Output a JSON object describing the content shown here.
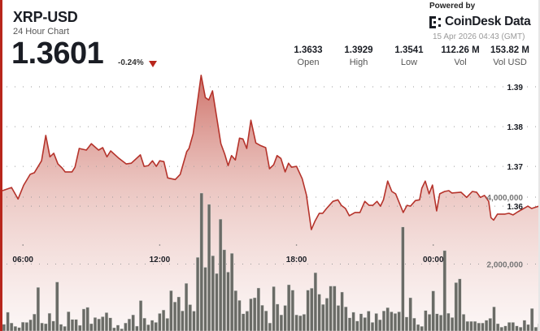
{
  "header": {
    "title": "XRP-USD",
    "subtitle": "24 Hour Chart",
    "price": "1.3601",
    "change": "-0.24%",
    "change_direction": "down",
    "down_color": "#b8261c"
  },
  "stats": [
    {
      "value": "1.3633",
      "label": "Open"
    },
    {
      "value": "1.3929",
      "label": "High"
    },
    {
      "value": "1.3541",
      "label": "Low"
    },
    {
      "value": "112.26 M",
      "label": "Vol"
    },
    {
      "value": "153.82 M",
      "label": "Vol USD"
    }
  ],
  "branding": {
    "powered_by": "Powered by",
    "name": "CoinDesk Data",
    "timestamp": "15 Apr 2026 04:43 (GMT)"
  },
  "chart_data": {
    "type": "line",
    "title": "",
    "xlabel": "",
    "ylabel": "",
    "xlim": [
      "05:06",
      "04:41"
    ],
    "ylim": [
      1.3286,
      1.3945
    ],
    "grid": true,
    "legend": "none",
    "line_color": "#b5332b",
    "bar_color": "#6a6b66",
    "x_ticks": [
      "06:00",
      "12:00",
      "18:00",
      "00:00"
    ],
    "price_ticks": [
      {
        "value": 1.39,
        "label": "1.39"
      },
      {
        "value": 1.38,
        "label": "1.38"
      },
      {
        "value": 1.37,
        "label": "1.37"
      },
      {
        "value": 1.36,
        "label": "1.36"
      }
    ],
    "volume_ticks": [
      {
        "value": 4000000,
        "label": "4,000,000"
      },
      {
        "value": 2000000,
        "label": "2,000,000"
      }
    ],
    "volume_ylim": [
      0,
      7830000
    ],
    "price_series": [
      [
        "05:06",
        1.3639
      ],
      [
        "05:30",
        1.3647
      ],
      [
        "05:47",
        1.3618
      ],
      [
        "06:02",
        1.3653
      ],
      [
        "06:19",
        1.368
      ],
      [
        "06:30",
        1.3684
      ],
      [
        "06:49",
        1.3714
      ],
      [
        "07:00",
        1.3778
      ],
      [
        "07:11",
        1.3724
      ],
      [
        "07:21",
        1.3733
      ],
      [
        "07:32",
        1.3706
      ],
      [
        "07:43",
        1.3696
      ],
      [
        "07:51",
        1.3686
      ],
      [
        "08:09",
        1.3686
      ],
      [
        "08:17",
        1.3698
      ],
      [
        "08:28",
        1.3745
      ],
      [
        "08:47",
        1.3741
      ],
      [
        "09:00",
        1.3757
      ],
      [
        "09:19",
        1.3741
      ],
      [
        "09:30",
        1.3747
      ],
      [
        "09:41",
        1.3724
      ],
      [
        "09:51",
        1.3739
      ],
      [
        "10:13",
        1.372
      ],
      [
        "10:32",
        1.3706
      ],
      [
        "10:45",
        1.3708
      ],
      [
        "11:09",
        1.3729
      ],
      [
        "11:19",
        1.37
      ],
      [
        "11:30",
        1.3702
      ],
      [
        "11:41",
        1.3714
      ],
      [
        "11:51",
        1.37
      ],
      [
        "12:00",
        1.3714
      ],
      [
        "12:11",
        1.3712
      ],
      [
        "12:21",
        1.3671
      ],
      [
        "12:41",
        1.3667
      ],
      [
        "12:54",
        1.368
      ],
      [
        "13:11",
        1.3737
      ],
      [
        "13:17",
        1.3745
      ],
      [
        "13:28",
        1.3782
      ],
      [
        "13:49",
        1.3929
      ],
      [
        "14:00",
        1.3873
      ],
      [
        "14:09",
        1.3867
      ],
      [
        "14:19",
        1.389
      ],
      [
        "14:41",
        1.3757
      ],
      [
        "14:51",
        1.3731
      ],
      [
        "15:00",
        1.3702
      ],
      [
        "15:09",
        1.3727
      ],
      [
        "15:19",
        1.3716
      ],
      [
        "15:30",
        1.3771
      ],
      [
        "15:39",
        1.3769
      ],
      [
        "15:49",
        1.3745
      ],
      [
        "16:00",
        1.3816
      ],
      [
        "16:13",
        1.3759
      ],
      [
        "16:24",
        1.3753
      ],
      [
        "16:39",
        1.3747
      ],
      [
        "16:49",
        1.3694
      ],
      [
        "17:00",
        1.3704
      ],
      [
        "17:09",
        1.3727
      ],
      [
        "17:19",
        1.372
      ],
      [
        "17:30",
        1.3686
      ],
      [
        "17:39",
        1.3708
      ],
      [
        "17:47",
        1.3698
      ],
      [
        "18:00",
        1.37
      ],
      [
        "18:15",
        1.3669
      ],
      [
        "18:26",
        1.3629
      ],
      [
        "18:39",
        1.3541
      ],
      [
        "18:49",
        1.3563
      ],
      [
        "19:00",
        1.3582
      ],
      [
        "19:09",
        1.3582
      ],
      [
        "19:19",
        1.3594
      ],
      [
        "19:36",
        1.3612
      ],
      [
        "19:49",
        1.3616
      ],
      [
        "19:58",
        1.3602
      ],
      [
        "20:09",
        1.3594
      ],
      [
        "20:19",
        1.3576
      ],
      [
        "20:34",
        1.3584
      ],
      [
        "20:47",
        1.3584
      ],
      [
        "21:00",
        1.3612
      ],
      [
        "21:11",
        1.3602
      ],
      [
        "21:21",
        1.3602
      ],
      [
        "21:32",
        1.3612
      ],
      [
        "21:41",
        1.36
      ],
      [
        "21:49",
        1.3616
      ],
      [
        "22:00",
        1.3663
      ],
      [
        "22:11",
        1.3637
      ],
      [
        "22:21",
        1.3631
      ],
      [
        "22:41",
        1.3584
      ],
      [
        "22:51",
        1.3602
      ],
      [
        "23:00",
        1.36
      ],
      [
        "23:13",
        1.3614
      ],
      [
        "23:24",
        1.3616
      ],
      [
        "23:30",
        1.3645
      ],
      [
        "23:39",
        1.3663
      ],
      [
        "23:49",
        1.3631
      ],
      [
        "23:58",
        1.3653
      ],
      [
        "00:09",
        1.3588
      ],
      [
        "00:17",
        1.3631
      ],
      [
        "00:30",
        1.3637
      ],
      [
        "00:41",
        1.3639
      ],
      [
        "00:49",
        1.3633
      ],
      [
        "01:13",
        1.3635
      ],
      [
        "01:28",
        1.3622
      ],
      [
        "01:43",
        1.3637
      ],
      [
        "01:54",
        1.3635
      ],
      [
        "02:04",
        1.3622
      ],
      [
        "02:15",
        1.3627
      ],
      [
        "02:26",
        1.3612
      ],
      [
        "02:32",
        1.3571
      ],
      [
        "02:39",
        1.3565
      ],
      [
        "02:49",
        1.358
      ],
      [
        "03:09",
        1.358
      ],
      [
        "03:19",
        1.3582
      ],
      [
        "03:30",
        1.3578
      ],
      [
        "03:43",
        1.3586
      ],
      [
        "04:09",
        1.36
      ],
      [
        "04:19",
        1.3594
      ],
      [
        "04:41",
        1.3601
      ]
    ],
    "volume_start": "05:10",
    "volume_interval_min": 10,
    "volume": [
      200000,
      561000,
      241000,
      137000,
      104000,
      265000,
      258000,
      337000,
      506000,
      1301000,
      241000,
      217000,
      530000,
      296000,
      1463000,
      200000,
      137000,
      578000,
      345000,
      345000,
      169000,
      658000,
      706000,
      217000,
      402000,
      361000,
      427000,
      547000,
      393000,
      96000,
      176000,
      65000,
      241000,
      361000,
      482000,
      145000,
      908000,
      386000,
      186000,
      320000,
      258000,
      523000,
      627000,
      378000,
      1205000,
      867000,
      1019000,
      602000,
      1422000,
      788000,
      595000,
      2200000,
      4120000,
      1904000,
      3783000,
      2248000,
      1718000,
      3342000,
      2426000,
      1759000,
      2320000,
      1205000,
      916000,
      513000,
      595000,
      964000,
      995000,
      1284000,
      771000,
      602000,
      241000,
      1325000,
      802000,
      482000,
      764000,
      1381000,
      1222000,
      482000,
      458000,
      499000,
      1222000,
      1277000,
      1742000,
      1101000,
      795000,
      981000,
      1342000,
      1342000,
      764000,
      1164000,
      723000,
      393000,
      561000,
      296000,
      513000,
      402000,
      595000,
      258000,
      523000,
      337000,
      602000,
      699000,
      571000,
      523000,
      571000,
      3108000,
      417000,
      995000,
      386000,
      193000,
      137000,
      610000,
      499000,
      1198000,
      513000,
      475000,
      2402000,
      530000,
      402000,
      1446000,
      1559000,
      499000,
      289000,
      289000,
      289000,
      241000,
      241000,
      320000,
      378000,
      723000,
      217000,
      113000,
      152000,
      258000,
      258000,
      152000,
      113000,
      320000,
      193000,
      675000,
      113000,
      217000,
      169000
    ]
  }
}
